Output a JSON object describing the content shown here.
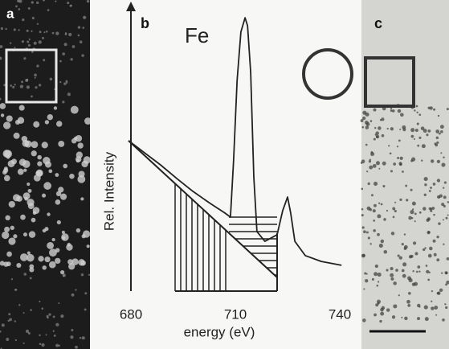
{
  "panel_labels": [
    "a",
    "b",
    "c"
  ],
  "chart_data": {
    "type": "line",
    "annotation": "Fe",
    "xlabel": "energy (eV)",
    "ylabel": "Rel. Intensity",
    "xlim": [
      680,
      740
    ],
    "xticks": [
      680,
      710,
      740
    ],
    "ylim": [
      0,
      100
    ],
    "x": [
      679.3,
      683.9,
      688.5,
      693.2,
      697.8,
      702.4,
      707.0,
      708.6,
      709.5,
      710.5,
      711.6,
      712.8,
      713.5,
      714.4,
      715.3,
      716.2,
      718.5,
      722.0,
      723.6,
      725.0,
      725.9,
      727.1,
      730.1,
      734.7,
      740.5
    ],
    "values": [
      54.7,
      50.3,
      45.9,
      40.9,
      36.3,
      32.2,
      28.4,
      26.9,
      47.4,
      76.6,
      94.2,
      99.4,
      96.5,
      79.5,
      41.5,
      21.6,
      18.1,
      20.5,
      29.2,
      34.2,
      28.4,
      18.1,
      12.9,
      10.8,
      9.4
    ],
    "color": "#222222"
  }
}
